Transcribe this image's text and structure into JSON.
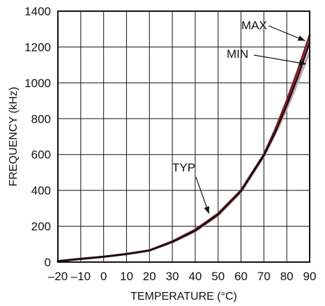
{
  "chart_data": {
    "type": "line",
    "title": "",
    "xlabel": "TEMPERATURE (°C)",
    "ylabel": "FREQUENCY (kHz)",
    "xlim": [
      -20,
      90
    ],
    "ylim": [
      0,
      1400
    ],
    "xticks": [
      -20,
      -10,
      0,
      10,
      20,
      30,
      40,
      50,
      60,
      70,
      80,
      90
    ],
    "yticks": [
      0,
      200,
      400,
      600,
      800,
      1000,
      1200,
      1400
    ],
    "grid": true,
    "series": [
      {
        "name": "MAX",
        "color": "#8b1a2b",
        "x": [
          -20,
          -10,
          0,
          10,
          20,
          30,
          40,
          50,
          60,
          70,
          75,
          80,
          85,
          90
        ],
        "y": [
          5,
          18,
          30,
          45,
          65,
          115,
          180,
          270,
          400,
          600,
          740,
          900,
          1075,
          1265
        ]
      },
      {
        "name": "TYP",
        "color": "#111111",
        "x": [
          -20,
          -10,
          0,
          10,
          20,
          30,
          40,
          50,
          60,
          70,
          75,
          80,
          85,
          90
        ],
        "y": [
          5,
          18,
          30,
          45,
          65,
          112,
          175,
          265,
          395,
          595,
          725,
          875,
          1040,
          1225
        ]
      },
      {
        "name": "MIN",
        "color": "#c9a0a8",
        "x": [
          -20,
          -10,
          0,
          10,
          20,
          30,
          40,
          50,
          60,
          70,
          75,
          80,
          85,
          90
        ],
        "y": [
          5,
          18,
          30,
          45,
          65,
          110,
          172,
          260,
          390,
          590,
          715,
          855,
          1010,
          1175
        ]
      }
    ],
    "annotations": [
      {
        "text": "MAX",
        "target_x": 88,
        "target_y": 1235
      },
      {
        "text": "MIN",
        "target_x": 88.5,
        "target_y": 1105
      },
      {
        "text": "TYP",
        "target_x": 46,
        "target_y": 270
      }
    ]
  }
}
